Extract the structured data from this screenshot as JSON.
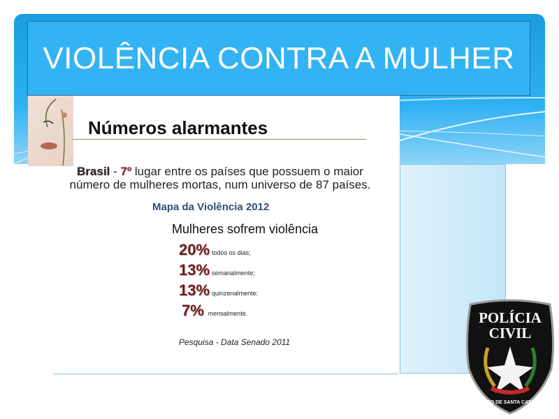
{
  "slide": {
    "title": "VIOLÊNCIA CONTRA A MULHER",
    "subtitle": "Números alarmantes",
    "brasil": {
      "country": "Brasil",
      "rank": "7º",
      "line1_rest": " lugar entre os países que possuem o maior",
      "line2": "número de mulheres mortas, num universo de 87 países."
    },
    "source_heading": "Mapa da Violência 2012",
    "stats_heading": "Mulheres sofrem violência",
    "stats": [
      {
        "percent": "20%",
        "label": "todos os dias;"
      },
      {
        "percent": "13%",
        "label": "semanalmente;"
      },
      {
        "percent": "13%",
        "label": "quinzenalmente;"
      },
      {
        "percent": "7%",
        "label": "mensalmente."
      }
    ],
    "footnote": "Pesquisa -  Data Senado 2011",
    "badge": {
      "line1": "POLÍCIA",
      "line2": "CIVIL",
      "ring_text": "ESTADO DE SANTA CATARINA"
    }
  },
  "colors": {
    "title_bg": "#33b3f3",
    "stat_color": "#6b2020",
    "heading_blue": "#2d4f7a"
  }
}
